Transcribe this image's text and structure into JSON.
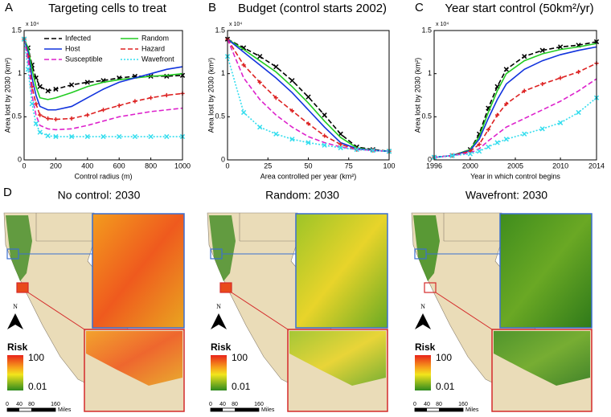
{
  "chart_data": [
    {
      "type": "line",
      "panel_label": "A",
      "title": "Targeting cells to treat",
      "xlabel": "Control radius (m)",
      "ylabel": "Area lost by 2030 (km²)",
      "y_multiplier": "x 10⁴",
      "xlim": [
        0,
        1000
      ],
      "ylim": [
        0,
        1.5
      ],
      "xticks": [
        0,
        200,
        400,
        600,
        800,
        1000
      ],
      "yticks": [
        0,
        0.5,
        1,
        1.5
      ],
      "legend": "upper right",
      "x": [
        0,
        25,
        50,
        75,
        100,
        150,
        200,
        300,
        400,
        500,
        600,
        700,
        800,
        900,
        1000
      ],
      "series": [
        {
          "name": "Infected",
          "color": "#000000",
          "marker": "x",
          "style": "dashed",
          "values": [
            1.4,
            1.3,
            1.1,
            0.95,
            0.85,
            0.8,
            0.82,
            0.87,
            0.9,
            0.92,
            0.95,
            0.97,
            0.97,
            0.97,
            0.98
          ]
        },
        {
          "name": "Random",
          "color": "#22cc22",
          "style": "solid",
          "values": [
            1.4,
            1.3,
            1.05,
            0.85,
            0.72,
            0.7,
            0.72,
            0.78,
            0.85,
            0.9,
            0.93,
            0.95,
            0.97,
            0.98,
            1.0
          ]
        },
        {
          "name": "Host",
          "color": "#1133dd",
          "style": "solid",
          "values": [
            1.4,
            1.25,
            0.95,
            0.75,
            0.62,
            0.58,
            0.58,
            0.62,
            0.72,
            0.82,
            0.9,
            0.95,
            1.0,
            1.05,
            1.08
          ]
        },
        {
          "name": "Hazard",
          "color": "#dd2222",
          "marker": "+",
          "style": "dashed",
          "values": [
            1.4,
            1.2,
            0.85,
            0.65,
            0.52,
            0.48,
            0.47,
            0.48,
            0.52,
            0.58,
            0.63,
            0.68,
            0.72,
            0.75,
            0.77
          ]
        },
        {
          "name": "Susceptible",
          "color": "#dd22cc",
          "style": "dashed",
          "values": [
            1.4,
            1.15,
            0.75,
            0.52,
            0.4,
            0.36,
            0.35,
            0.36,
            0.4,
            0.45,
            0.5,
            0.53,
            0.56,
            0.58,
            0.6
          ]
        },
        {
          "name": "Wavefront",
          "color": "#33ddee",
          "marker": "x",
          "style": "dotted",
          "values": [
            1.4,
            1.05,
            0.65,
            0.42,
            0.32,
            0.28,
            0.27,
            0.27,
            0.27,
            0.27,
            0.27,
            0.27,
            0.27,
            0.27,
            0.27
          ]
        }
      ]
    },
    {
      "type": "line",
      "panel_label": "B",
      "title": "Budget (control starts 2002)",
      "xlabel": "Area controlled per year (km²)",
      "ylabel": "Area lost by 2030 (km²)",
      "y_multiplier": "x 10⁴",
      "xlim": [
        0,
        100
      ],
      "ylim": [
        0,
        1.5
      ],
      "xticks": [
        0,
        25,
        50,
        75,
        100
      ],
      "yticks": [
        0,
        0.5,
        1,
        1.5
      ],
      "x": [
        0,
        10,
        20,
        30,
        40,
        50,
        60,
        70,
        80,
        90,
        100
      ],
      "series": [
        {
          "color": "#000000",
          "marker": "x",
          "style": "dashed",
          "values": [
            1.4,
            1.3,
            1.2,
            1.08,
            0.92,
            0.73,
            0.52,
            0.3,
            0.15,
            0.12,
            0.1
          ]
        },
        {
          "color": "#22cc22",
          "style": "solid",
          "values": [
            1.4,
            1.28,
            1.15,
            1.02,
            0.85,
            0.66,
            0.45,
            0.26,
            0.14,
            0.11,
            0.1
          ]
        },
        {
          "color": "#1133dd",
          "style": "solid",
          "values": [
            1.4,
            1.25,
            1.1,
            0.95,
            0.78,
            0.58,
            0.38,
            0.2,
            0.13,
            0.11,
            0.1
          ]
        },
        {
          "color": "#dd2222",
          "marker": "+",
          "style": "dashed",
          "values": [
            1.4,
            1.1,
            0.9,
            0.72,
            0.57,
            0.42,
            0.28,
            0.18,
            0.12,
            0.11,
            0.1
          ]
        },
        {
          "color": "#dd22cc",
          "style": "dashed",
          "values": [
            1.4,
            0.95,
            0.7,
            0.52,
            0.38,
            0.27,
            0.2,
            0.15,
            0.12,
            0.11,
            0.1
          ]
        },
        {
          "color": "#33ddee",
          "marker": "x",
          "style": "dotted",
          "values": [
            1.2,
            0.55,
            0.38,
            0.3,
            0.24,
            0.2,
            0.17,
            0.14,
            0.12,
            0.11,
            0.1
          ]
        }
      ]
    },
    {
      "type": "line",
      "panel_label": "C",
      "title": "Year start control (50km²/yr)",
      "xlabel": "Year in which control begins",
      "ylabel": "Area lost by 2030 (km²)",
      "y_multiplier": "x 10⁴",
      "xlim": [
        1996,
        2014
      ],
      "ylim": [
        0,
        1.5
      ],
      "xticks": [
        1996,
        2000,
        2005,
        2010,
        2014
      ],
      "yticks": [
        0,
        0.5,
        1,
        1.5
      ],
      "x": [
        1996,
        1998,
        2000,
        2001,
        2002,
        2003,
        2004,
        2006,
        2008,
        2010,
        2012,
        2014
      ],
      "series": [
        {
          "color": "#000000",
          "marker": "x",
          "style": "dashed",
          "values": [
            0.03,
            0.05,
            0.12,
            0.3,
            0.6,
            0.85,
            1.05,
            1.2,
            1.27,
            1.31,
            1.33,
            1.37
          ]
        },
        {
          "color": "#22cc22",
          "style": "solid",
          "values": [
            0.03,
            0.05,
            0.12,
            0.27,
            0.55,
            0.8,
            1.0,
            1.15,
            1.23,
            1.28,
            1.31,
            1.35
          ]
        },
        {
          "color": "#1133dd",
          "style": "solid",
          "values": [
            0.03,
            0.05,
            0.11,
            0.24,
            0.48,
            0.7,
            0.88,
            1.05,
            1.15,
            1.22,
            1.27,
            1.31
          ]
        },
        {
          "color": "#dd2222",
          "marker": "+",
          "style": "dashed",
          "values": [
            0.03,
            0.05,
            0.1,
            0.18,
            0.35,
            0.52,
            0.65,
            0.8,
            0.88,
            0.95,
            1.02,
            1.12
          ]
        },
        {
          "color": "#dd22cc",
          "style": "dashed",
          "values": [
            0.03,
            0.05,
            0.08,
            0.13,
            0.22,
            0.3,
            0.38,
            0.48,
            0.58,
            0.68,
            0.8,
            0.94
          ]
        },
        {
          "color": "#33ddee",
          "marker": "x",
          "style": "dotted",
          "values": [
            0.03,
            0.05,
            0.07,
            0.1,
            0.15,
            0.2,
            0.24,
            0.3,
            0.36,
            0.43,
            0.55,
            0.72
          ]
        }
      ]
    }
  ],
  "maps": {
    "panel_label": "D",
    "panels": [
      {
        "title": "No control: 2030"
      },
      {
        "title": "Random: 2030"
      },
      {
        "title": "Wavefront: 2030"
      }
    ],
    "legend": {
      "title": "Risk",
      "max": "100",
      "min": "0.01"
    },
    "north": "N",
    "scale": {
      "ticks": [
        "0",
        "40",
        "80",
        "160"
      ],
      "unit": "Miles"
    }
  }
}
